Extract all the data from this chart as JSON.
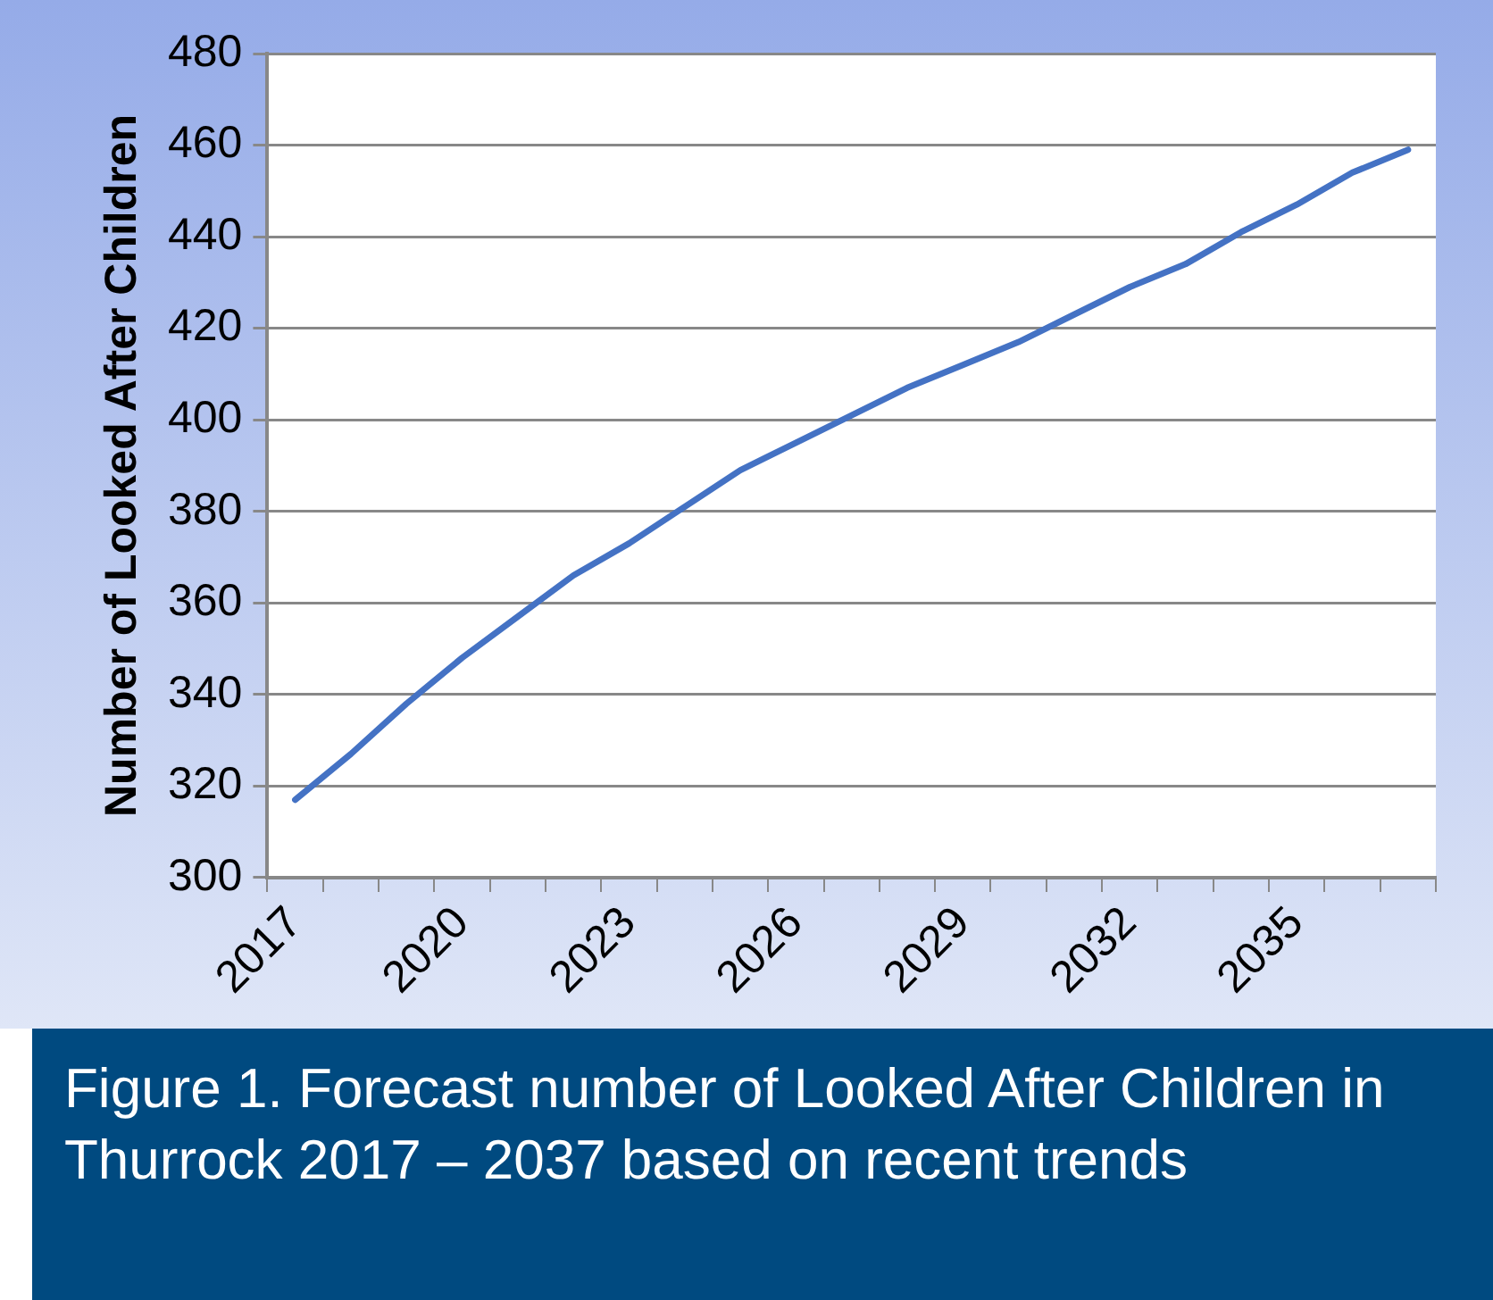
{
  "chart_data": {
    "type": "line",
    "title": "Figure 1. Forecast number of Looked After Children in Thurrock 2017 – 2037 based on recent trends",
    "ylabel": "Number of Looked After Children",
    "categories": [
      "2017",
      null,
      null,
      "2020",
      null,
      null,
      "2023",
      null,
      null,
      "2026",
      null,
      null,
      "2029",
      null,
      null,
      "2032",
      null,
      null,
      "2035",
      null,
      null
    ],
    "series": [
      {
        "color": "#4472c4",
        "values": [
          317,
          327,
          338,
          348,
          357,
          366,
          373,
          381,
          389,
          395,
          401,
          407,
          412,
          417,
          423,
          429,
          434,
          441,
          447,
          454,
          459
        ]
      }
    ],
    "ylim": [
      300,
      480
    ],
    "yticks": [
      300,
      320,
      340,
      360,
      380,
      400,
      420,
      440,
      460,
      480
    ],
    "grid": "y",
    "legend": false,
    "marker": "none",
    "line_style": "solid"
  }
}
